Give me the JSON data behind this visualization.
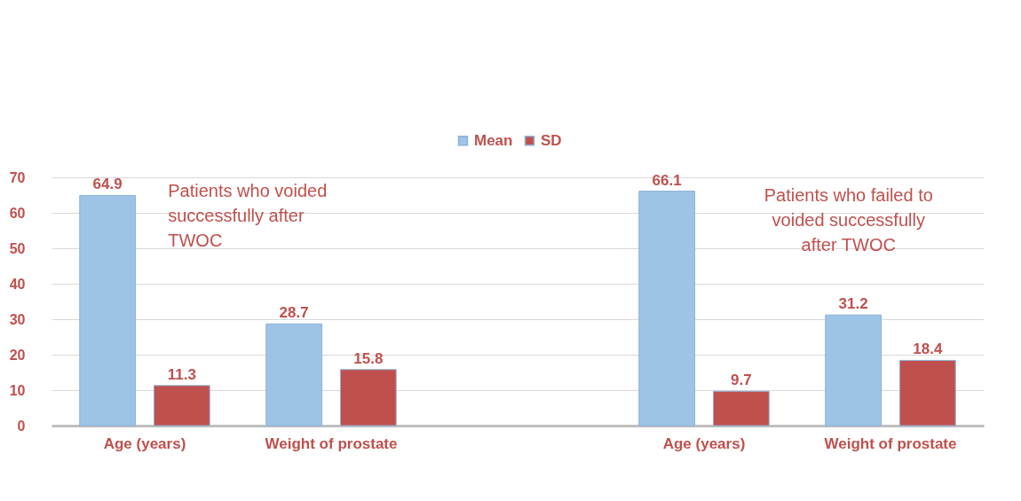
{
  "chart_data": {
    "type": "bar",
    "categories": [
      "Age (years)",
      "Weight of prostate",
      null,
      "Age (years)",
      "Weight of prostate"
    ],
    "series": [
      {
        "name": "Mean",
        "color": "#9dc3e6",
        "values": [
          64.9,
          28.7,
          null,
          66.1,
          31.2
        ]
      },
      {
        "name": "SD",
        "color": "#c0504d",
        "values": [
          11.3,
          15.8,
          null,
          9.7,
          18.4
        ]
      }
    ],
    "ylim": [
      0,
      70
    ],
    "yticks": [
      0,
      10,
      20,
      30,
      40,
      50,
      60,
      70
    ],
    "grid": "y",
    "legend": "top",
    "data_labels": true,
    "annotations": [
      "Patients who voided successfully after TWOC",
      "Patients who failed to voided successfully after TWOC"
    ]
  }
}
